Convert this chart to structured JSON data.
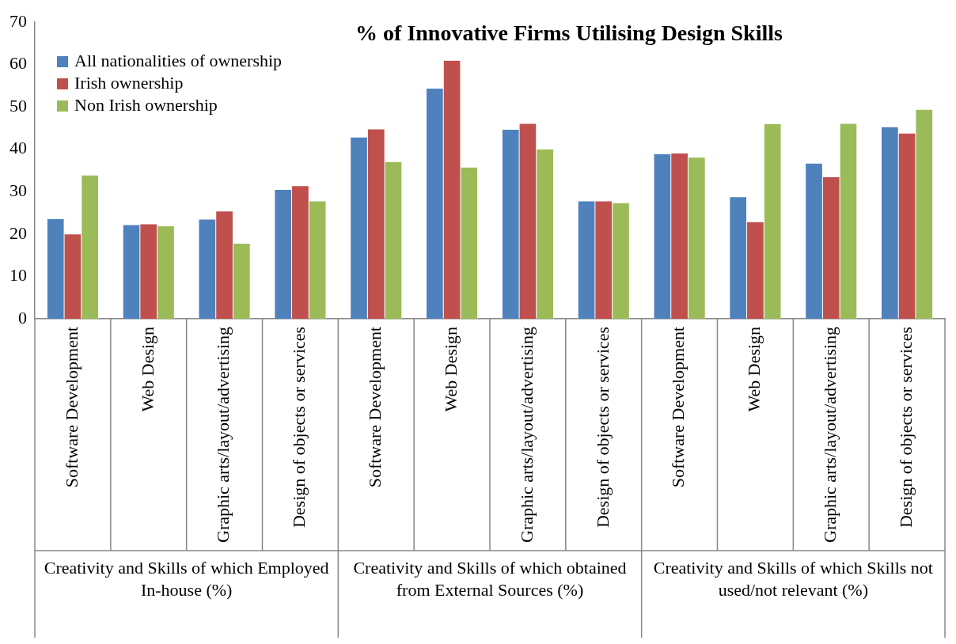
{
  "chart_data": {
    "type": "bar",
    "title": "% of Innovative Firms Utilising Design Skills",
    "categories": [
      "Software Development",
      "Web Design",
      "Graphic arts/layout/advertising",
      "Design of objects or services",
      "Software Development",
      "Web Design",
      "Graphic arts/layout/advertising",
      "Design of objects or services",
      "Software Development",
      "Web Design",
      "Graphic arts/layout/advertising",
      "Design of objects or services"
    ],
    "series": [
      {
        "name": "All nationalities of ownership",
        "color": "#4f81bd",
        "values": [
          23.6,
          22.2,
          23.5,
          30.5,
          42.9,
          54.4,
          44.7,
          27.8,
          38.9,
          28.8,
          36.7,
          45.3
        ]
      },
      {
        "name": "Irish ownership",
        "color": "#c0504d",
        "values": [
          20.0,
          22.4,
          25.4,
          31.4,
          44.8,
          61.0,
          46.1,
          27.8,
          39.1,
          22.9,
          33.5,
          43.8
        ]
      },
      {
        "name": "Non Irish ownership",
        "color": "#9bbb59",
        "values": [
          33.9,
          21.9,
          17.8,
          27.8,
          37.1,
          35.8,
          40.1,
          27.4,
          38.1,
          46.0,
          46.1,
          49.4
        ]
      }
    ],
    "annotations": [
      "Creativity and Skills of which Employed In-house (%)",
      "Creativity and Skills of which obtained from External Sources (%)",
      "Creativity and Skills of which Skills not used/not relevant (%)"
    ],
    "ylim": [
      0,
      70
    ],
    "yticks": [
      0,
      10,
      20,
      30,
      40,
      50,
      60,
      70
    ],
    "grid": false,
    "legend": "top left"
  }
}
